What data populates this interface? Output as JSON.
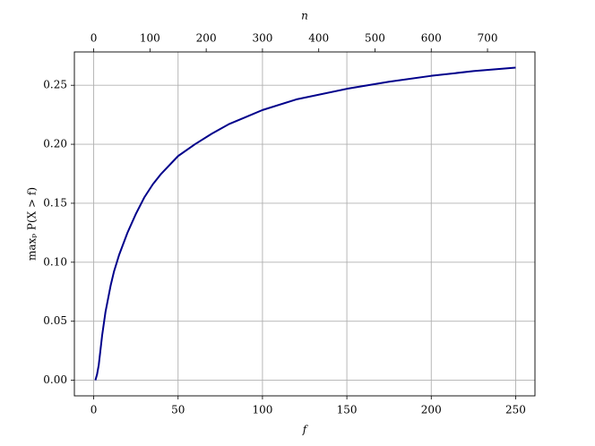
{
  "chart_data": {
    "type": "line",
    "x_label": "f",
    "x2_label": "n",
    "y_label": "maxₚ P(X > f)",
    "x": [
      1,
      2,
      3,
      5,
      7,
      10,
      12,
      15,
      20,
      25,
      30,
      35,
      40,
      50,
      60,
      70,
      80,
      90,
      100,
      120,
      150,
      175,
      200,
      225,
      250
    ],
    "values": [
      0.0,
      0.005,
      0.013,
      0.038,
      0.058,
      0.08,
      0.092,
      0.106,
      0.125,
      0.141,
      0.155,
      0.166,
      0.175,
      0.19,
      0.2,
      0.209,
      0.217,
      0.223,
      0.229,
      0.238,
      0.247,
      0.253,
      0.258,
      0.262,
      0.265
    ],
    "color": "#00008b",
    "xlim": [
      -11.45,
      261.45
    ],
    "xticks": [
      0,
      50,
      100,
      150,
      200,
      250
    ],
    "x2lim": [
      -34.35,
      784.35
    ],
    "x2ticks": [
      0,
      100,
      200,
      300,
      400,
      500,
      600,
      700
    ],
    "ylim": [
      -0.01325,
      0.27825
    ],
    "yticks": [
      {
        "value": 0,
        "label": "0.00"
      },
      {
        "value": 0.05,
        "label": "0.05"
      },
      {
        "value": 0.1,
        "label": "0.10"
      },
      {
        "value": 0.15,
        "label": "0.15"
      },
      {
        "value": 0.2,
        "label": "0.20"
      },
      {
        "value": 0.25,
        "label": "0.25"
      }
    ],
    "grid": true
  }
}
